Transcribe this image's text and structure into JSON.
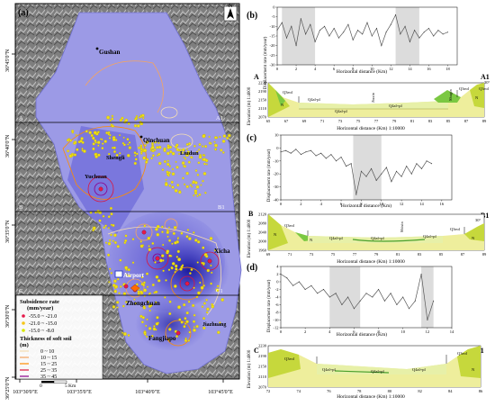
{
  "map": {
    "panel_label": "(a)",
    "north": "N",
    "places": [
      "Gushan",
      "Qinchuan",
      "Shengli",
      "Liudun",
      "Yuchuan",
      "Xicha",
      "Airport",
      "Zhongchuan",
      "Fangjiapo",
      "Jiazhuang"
    ],
    "section_letters": {
      "a": "A",
      "a1": "A1",
      "b": "B",
      "b1": "B1",
      "c": "C",
      "c1": "C1"
    },
    "lat_labels": [
      "36°45'0\"N",
      "36°40'0\"N",
      "36°35'0\"N",
      "36°30'0\"N",
      "36°25'0\"N"
    ],
    "lon_labels": [
      "103°30'0\"E",
      "103°35'0\"E",
      "103°40'0\"E",
      "103°45'0\"E"
    ],
    "scale": {
      "zero": "0",
      "end": "5",
      "unit": "Km"
    },
    "legend": {
      "title1": "Subsidence rate",
      "title2": "(mm/year)",
      "items": [
        {
          "label": "-55.0 ~ -21.0",
          "color": "#e6194b"
        },
        {
          "label": "-21.0 ~ -15.0",
          "color": "#f5c518"
        },
        {
          "label": "-15.0 ~ -8.0",
          "color": "#d8e800"
        }
      ],
      "soil_title1": "Thickness of soft soil",
      "soil_title2": "(m)",
      "soil_items": [
        {
          "label": "0 ~ 10",
          "color": "#f5deb3"
        },
        {
          "label": "10 ~ 15",
          "color": "#f4a460"
        },
        {
          "label": "15 ~ 25",
          "color": "#ff8c00"
        },
        {
          "label": "25 ~ 35",
          "color": "#dc143c"
        },
        {
          "label": "35 ~ 45",
          "color": "#8b008b"
        }
      ]
    }
  },
  "panel_b": {
    "label": "(b)",
    "ylabel": "Displacement rate (mm/year)",
    "xlabel": "Horizontal distance (Km)",
    "yticks": [
      "-30",
      "-25",
      "-20",
      "-15",
      "-10",
      "-5",
      "0"
    ],
    "xticks": [
      "0",
      "2",
      "4",
      "6",
      "8",
      "10",
      "12",
      "14",
      "16",
      "18"
    ],
    "sect_ylabel": "Elevation (m) 1:4000",
    "sect_xlabel": "Horizontal distance (Km) 1:10000",
    "sect_yticks": [
      "2230",
      "2190",
      "2150",
      "2110",
      "2070"
    ],
    "sect_xticks": [
      "65",
      "67",
      "69",
      "71",
      "73",
      "75",
      "77",
      "79",
      "81",
      "83",
      "85",
      "87",
      "89"
    ],
    "letters": {
      "left": "A",
      "right": "A1"
    },
    "labels": [
      "N",
      "Q3eol",
      "Q4al-pl",
      "Q4al-pl",
      "Q4al+pl",
      "Jiuxin",
      "Shugin",
      "Q3eol",
      "N",
      "Q3eol",
      "30°"
    ]
  },
  "panel_c": {
    "label": "(c)",
    "ylabel": "Displacement rate (mm/year)",
    "xlabel": "Horizontal distance (Km)",
    "yticks": [
      "-40",
      "-30",
      "-20",
      "-10",
      "0",
      "10"
    ],
    "xticks": [
      "0",
      "2",
      "4",
      "6",
      "8",
      "10",
      "12",
      "14",
      "16"
    ],
    "sect_ylabel": "Elevation (m) 1:4000",
    "sect_xlabel": "Horizontal distance (Km) 1:10000",
    "sect_yticks": [
      "2120",
      "2080",
      "2040",
      "2000",
      "1960"
    ],
    "sect_xticks": [
      "69",
      "71",
      "73",
      "75",
      "77",
      "79",
      "81",
      "83",
      "85",
      "87",
      "89"
    ],
    "letters": {
      "left": "B",
      "right": "B1"
    },
    "labels": [
      "N",
      "Q3eol",
      "N",
      "Q4al+pl",
      "Q4al+pl",
      "Q4al+pl",
      "Shixin",
      "Q3eol",
      "N",
      "30°"
    ]
  },
  "panel_d": {
    "label": "(d)",
    "ylabel": "Displacement rate (mm/year)",
    "xlabel": "Horizontal distance (Km)",
    "yticks": [
      "-12",
      "-10",
      "-8",
      "-6",
      "-4",
      "-2",
      "0",
      "2",
      "4"
    ],
    "xticks": [
      "0",
      "2",
      "4",
      "6",
      "8",
      "10",
      "12",
      "14"
    ],
    "sect_ylabel": "Elevation (m) 1:4000",
    "sect_xlabel": "Horizontal distance (Km) 1:10000",
    "sect_yticks": [
      "2230",
      "2190",
      "2150",
      "2110",
      "2070"
    ],
    "sect_xticks": [
      "72",
      "74",
      "76",
      "78",
      "80",
      "82",
      "84",
      "86"
    ],
    "letters": {
      "left": "C",
      "right": "C1"
    },
    "labels": [
      "Q3eol",
      "Q4al+pl",
      "Q4al+pl",
      "Q4al+pl",
      "Q3eol",
      "N"
    ]
  },
  "chart_data": [
    {
      "type": "line",
      "title": "(b)",
      "xlabel": "Horizontal distance (Km)",
      "ylabel": "Displacement rate (mm/year)",
      "xlim": [
        0,
        19
      ],
      "ylim": [
        -30,
        0
      ],
      "shaded_x": [
        [
          0.5,
          4.0
        ],
        [
          12.5,
          15.0
        ]
      ],
      "x": [
        0,
        0.5,
        1,
        1.5,
        2,
        2.5,
        3,
        3.5,
        4,
        4.5,
        5,
        5.5,
        6,
        6.5,
        7,
        7.5,
        8,
        8.5,
        9,
        9.5,
        10,
        10.5,
        11,
        11.5,
        12,
        12.5,
        13,
        13.5,
        14,
        14.5,
        15,
        15.5,
        16,
        16.5,
        17,
        17.5,
        18
      ],
      "series": [
        {
          "values": [
            -12,
            -8,
            -16,
            -10,
            -20,
            -6,
            -14,
            -9,
            -18,
            -12,
            -10,
            -15,
            -11,
            -16,
            -13,
            -9,
            -17,
            -12,
            -14,
            -8,
            -15,
            -11,
            -20,
            -13,
            -9,
            -4,
            -14,
            -10,
            -18,
            -12,
            -16,
            -13,
            -11,
            -15,
            -12,
            -14,
            -13
          ]
        }
      ]
    },
    {
      "type": "line",
      "title": "(c)",
      "xlabel": "Horizontal distance (Km)",
      "ylabel": "Displacement rate (mm/year)",
      "xlim": [
        0,
        17
      ],
      "ylim": [
        -40,
        10
      ],
      "shaded_x": [
        [
          7.2,
          10.0
        ]
      ],
      "x": [
        0,
        0.5,
        1,
        1.5,
        2,
        2.5,
        3,
        3.5,
        4,
        4.5,
        5,
        5.5,
        6,
        6.5,
        7,
        7.5,
        8,
        8.5,
        9,
        9.5,
        10,
        10.5,
        11,
        11.5,
        12,
        12.5,
        13,
        13.5,
        14,
        14.5,
        15
      ],
      "series": [
        {
          "values": [
            -3,
            -2,
            -4,
            -1,
            -5,
            -3,
            -2,
            -6,
            -4,
            -8,
            -5,
            -10,
            -7,
            -14,
            -12,
            -36,
            -18,
            -22,
            -16,
            -25,
            -20,
            -15,
            -26,
            -18,
            -22,
            -14,
            -20,
            -12,
            -16,
            -10,
            -12
          ]
        }
      ]
    },
    {
      "type": "line",
      "title": "(d)",
      "xlabel": "Horizontal distance (Km)",
      "ylabel": "Displacement rate (mm/year)",
      "xlim": [
        0,
        14
      ],
      "ylim": [
        -12,
        4
      ],
      "shaded_x": [
        [
          4.0,
          6.5
        ],
        [
          11.5,
          12.5
        ]
      ],
      "x": [
        0,
        0.5,
        1,
        1.5,
        2,
        2.5,
        3,
        3.5,
        4,
        4.5,
        5,
        5.5,
        6,
        6.5,
        7,
        7.5,
        8,
        8.5,
        9,
        9.5,
        10,
        10.5,
        11,
        11.5,
        12,
        12.5
      ],
      "series": [
        {
          "values": [
            2,
            1,
            -1,
            0,
            -2,
            -1,
            -3,
            -2,
            -4,
            -3,
            -6,
            -4,
            -7,
            -5,
            -3,
            -4,
            -2,
            -5,
            -3,
            -6,
            -4,
            -7,
            -5,
            2,
            -10,
            -5
          ]
        }
      ]
    }
  ]
}
